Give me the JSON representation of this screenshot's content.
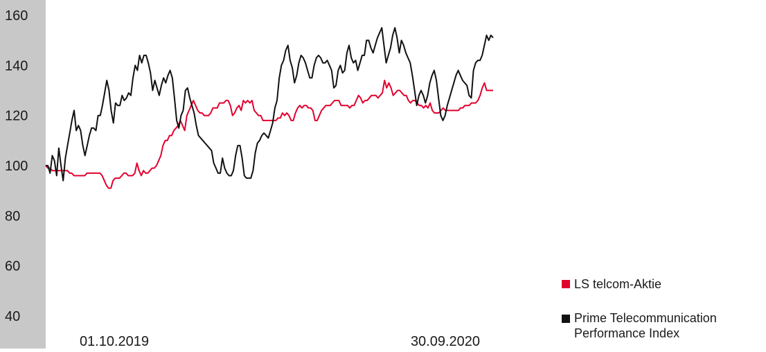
{
  "chart_data": {
    "type": "line",
    "yticks": [
      40,
      60,
      80,
      100,
      120,
      140,
      160
    ],
    "ylim": [
      40,
      160
    ],
    "x_start_label": "01.10.2019",
    "x_end_label": "30.09.2020",
    "grid": false,
    "legend_position": "bottom-right",
    "series": [
      {
        "name": "LS telcom-Aktie",
        "color": "#e2002d",
        "values": [
          100,
          99,
          99,
          98,
          98,
          98,
          98,
          98,
          98,
          98,
          98,
          97,
          97,
          96,
          96,
          96,
          96,
          96,
          96,
          97,
          97,
          97,
          97,
          97,
          97,
          97,
          96,
          94,
          92,
          91,
          91,
          94,
          95,
          95,
          95,
          96,
          97,
          97,
          96,
          96,
          96,
          97,
          101,
          98,
          96,
          98,
          97,
          97,
          98,
          99,
          99,
          100,
          102,
          104,
          108,
          110,
          110,
          112,
          112,
          114,
          115,
          116,
          118,
          116,
          114,
          120,
          122,
          124,
          126,
          124,
          122,
          121,
          121,
          120,
          120,
          120,
          121,
          123,
          123,
          123,
          125,
          125,
          125,
          126,
          126,
          124,
          120,
          121,
          123,
          124,
          122,
          126,
          125,
          126,
          125,
          126,
          122,
          121,
          120,
          120,
          118,
          118,
          118,
          118,
          118,
          118,
          118,
          119,
          119,
          121,
          120,
          121,
          120,
          118,
          118,
          121,
          123,
          124,
          123,
          124,
          124,
          123,
          123,
          122,
          118,
          118,
          120,
          122,
          123,
          124,
          124,
          124,
          125,
          126,
          126,
          126,
          124,
          124,
          124,
          124,
          123,
          124,
          124,
          126,
          128,
          127,
          125,
          126,
          126,
          127,
          128,
          128,
          128,
          127,
          128,
          129,
          134,
          131,
          133,
          131,
          128,
          129,
          130,
          130,
          129,
          128,
          128,
          126,
          125,
          126,
          126,
          125,
          124,
          124,
          123,
          124,
          123,
          125,
          122,
          121,
          121,
          121,
          122,
          123,
          122,
          122,
          122,
          122,
          122,
          122,
          122,
          123,
          123,
          124,
          124,
          124,
          125,
          125,
          125,
          126,
          128,
          131,
          133,
          130,
          130,
          130,
          130
        ]
      },
      {
        "name": "Prime Telecommunication Performance Index",
        "color": "#111111",
        "values": [
          100,
          100,
          97,
          104,
          102,
          96,
          107,
          100,
          94,
          103,
          108,
          113,
          118,
          122,
          114,
          116,
          114,
          108,
          104,
          108,
          112,
          115,
          115,
          114,
          120,
          120,
          124,
          129,
          134,
          130,
          122,
          117,
          125,
          124,
          124,
          128,
          126,
          127,
          129,
          128,
          135,
          140,
          138,
          144,
          141,
          144,
          144,
          141,
          137,
          130,
          134,
          131,
          128,
          132,
          135,
          133,
          136,
          138,
          135,
          127,
          118,
          115,
          120,
          122,
          130,
          131,
          127,
          124,
          121,
          116,
          112,
          111,
          110,
          109,
          108,
          107,
          106,
          101,
          99,
          97,
          97,
          103,
          99,
          97,
          96,
          96,
          98,
          104,
          108,
          108,
          103,
          96,
          95,
          95,
          95,
          98,
          105,
          109,
          110,
          112,
          113,
          112,
          111,
          114,
          117,
          123,
          126,
          135,
          140,
          142,
          146,
          148,
          142,
          139,
          133,
          136,
          141,
          144,
          143,
          141,
          138,
          135,
          135,
          140,
          143,
          144,
          143,
          141,
          141,
          142,
          140,
          138,
          131,
          132,
          138,
          140,
          137,
          138,
          145,
          148,
          143,
          141,
          142,
          138,
          141,
          144,
          144,
          150,
          150,
          147,
          145,
          148,
          151,
          153,
          155,
          148,
          141,
          144,
          147,
          152,
          155,
          151,
          145,
          150,
          148,
          145,
          143,
          141,
          136,
          130,
          124,
          128,
          130,
          128,
          125,
          128,
          133,
          136,
          138,
          134,
          127,
          120,
          118,
          120,
          124,
          127,
          130,
          133,
          136,
          138,
          136,
          134,
          133,
          132,
          128,
          127,
          138,
          141,
          142,
          142,
          144,
          148,
          152,
          150,
          152,
          151
        ]
      }
    ]
  }
}
